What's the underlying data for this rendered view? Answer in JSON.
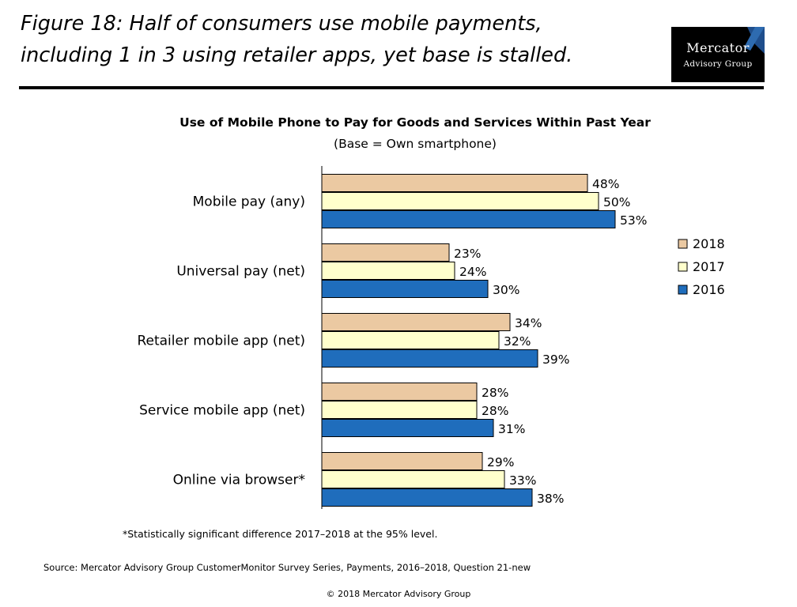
{
  "figure": {
    "title_line1": "Figure 18: Half of consumers use mobile payments,",
    "title_line2": "including 1 in 3 using retailer apps, yet base is stalled."
  },
  "logo": {
    "line1": "Mercator",
    "line2": "Advisory Group"
  },
  "chart_data": {
    "type": "bar",
    "orientation": "horizontal",
    "title": "Use of Mobile Phone to Pay for Goods and Services Within Past Year",
    "subtitle": "(Base = Own smartphone)",
    "categories": [
      "Mobile pay (any)",
      "Universal pay (net)",
      "Retailer mobile app (net)",
      "Service mobile app (net)",
      "Online via browser*"
    ],
    "series": [
      {
        "name": "2018",
        "color": "#EBC9A2",
        "values": [
          48,
          23,
          34,
          28,
          29
        ]
      },
      {
        "name": "2017",
        "color": "#FFFFCC",
        "values": [
          50,
          24,
          32,
          28,
          33
        ]
      },
      {
        "name": "2016",
        "color": "#1F6DBC",
        "values": [
          53,
          30,
          39,
          31,
          38
        ]
      }
    ],
    "value_suffix": "%",
    "xlim": [
      0,
      100
    ],
    "grid": false,
    "legend_position": "right"
  },
  "footnote": "*Statistically significant difference 2017–2018 at the 95% level.",
  "source": "Source: Mercator Advisory Group CustomerMonitor Survey Series, Payments, 2016–2018,  Question 21-new",
  "copyright": "© 2018 Mercator Advisory Group"
}
